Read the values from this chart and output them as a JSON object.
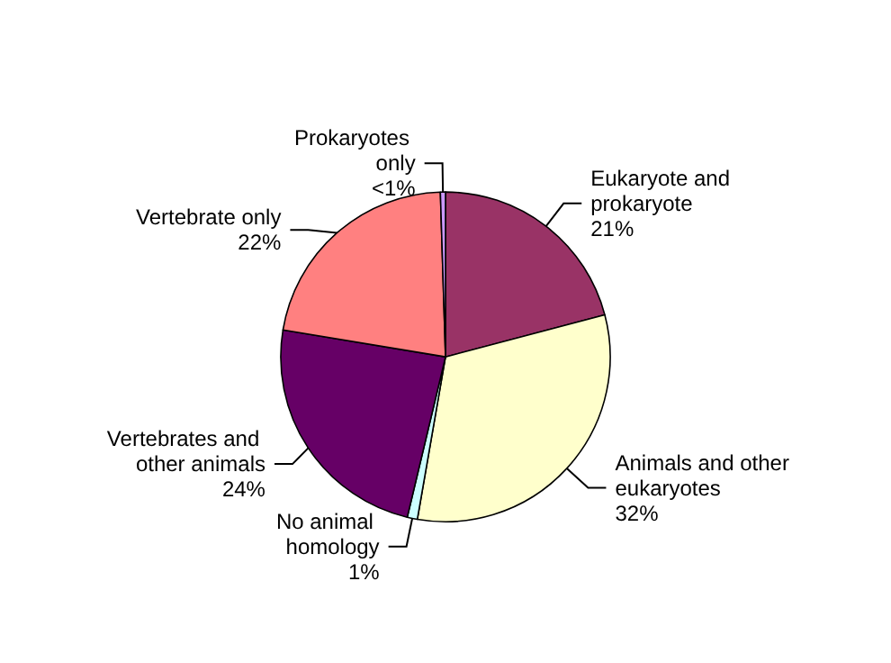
{
  "chart_data": {
    "type": "pie",
    "categories": [
      "Eukaryote and prokaryote",
      "Animals and other eukaryotes",
      "No animal homology",
      "Vertebrates and other animals",
      "Vertebrate only",
      "Prokaryotes only"
    ],
    "values": [
      21,
      32,
      1,
      24,
      22,
      0.5
    ],
    "value_labels": [
      "21%",
      "32%",
      "1%",
      "24%",
      "22%",
      "<1%"
    ],
    "colors": [
      "#993366",
      "#ffffcc",
      "#ccffff",
      "#660066",
      "#ff8080",
      "#cc99ff"
    ]
  }
}
